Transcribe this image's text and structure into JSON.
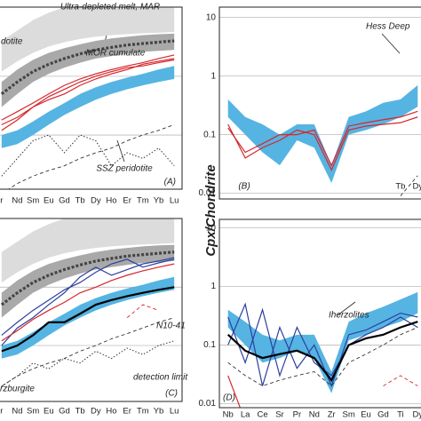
{
  "ylabel": "Cpx/Chondrite",
  "chart_data": [
    {
      "type": "line",
      "log": true,
      "ylim": [
        0.012,
        15
      ],
      "yticks": [
        0.1,
        1
      ],
      "grid": true,
      "categories": [
        "r",
        "Nd",
        "Sm",
        "Eu",
        "Gd",
        "Tb",
        "Dy",
        "Ho",
        "Er",
        "Tm",
        "Yb",
        "Lu"
      ],
      "annotations": [
        "dotite",
        "Ultra-depleted melt, MAR",
        "MOR cumulate",
        "SSZ peridotite",
        "(A)"
      ],
      "series": [
        {
          "style": "band",
          "color": "#dcdcdc",
          "low": [
            1.2,
            1.8,
            2.5,
            3.2,
            3.8,
            4.3,
            4.7,
            5,
            5.2,
            5.4,
            5.5,
            5.7
          ],
          "high": [
            4,
            6,
            9,
            12,
            15,
            15,
            15,
            15,
            15,
            15,
            15,
            15
          ]
        },
        {
          "style": "band",
          "color": "#a9a9a9",
          "low": [
            0.3,
            0.5,
            0.8,
            1.1,
            1.4,
            1.7,
            2,
            2.2,
            2.4,
            2.6,
            2.7,
            2.8
          ],
          "high": [
            0.8,
            1.3,
            1.9,
            2.5,
            3,
            3.5,
            4,
            4.4,
            4.7,
            5,
            5.2,
            5.3
          ]
        },
        {
          "style": "band",
          "color": "#56b4e2",
          "low": [
            0.06,
            0.07,
            0.1,
            0.15,
            0.22,
            0.3,
            0.4,
            0.5,
            0.6,
            0.7,
            0.8,
            0.9
          ],
          "high": [
            0.1,
            0.12,
            0.17,
            0.25,
            0.35,
            0.5,
            0.65,
            0.8,
            0.95,
            1.1,
            1.3,
            1.5
          ]
        },
        {
          "style": "thickdash",
          "color": "#444444",
          "values": [
            0.5,
            0.8,
            1.2,
            1.6,
            2,
            2.4,
            2.8,
            3.1,
            3.4,
            3.6,
            3.8,
            4
          ]
        },
        {
          "style": "solid",
          "color": "#d7262b",
          "values": [
            0.15,
            0.2,
            0.3,
            0.4,
            0.5,
            0.7,
            0.9,
            1.1,
            1.3,
            1.6,
            1.8,
            2
          ]
        },
        {
          "style": "solid",
          "color": "#d7262b",
          "values": [
            0.12,
            0.18,
            0.3,
            0.45,
            0.6,
            0.8,
            1,
            1.2,
            1.4,
            1.5,
            1.7,
            1.9
          ]
        },
        {
          "style": "solid",
          "color": "#d7262b",
          "values": [
            0.18,
            0.25,
            0.35,
            0.5,
            0.7,
            0.9,
            1.1,
            1.3,
            1.5,
            1.7,
            2,
            2.3
          ]
        },
        {
          "style": "dashed",
          "color": "#333333",
          "values": [
            0.01,
            0.015,
            0.02,
            0.025,
            0.03,
            0.04,
            0.05,
            0.06,
            0.08,
            0.1,
            0.12,
            0.15
          ]
        },
        {
          "style": "dotted",
          "color": "#333333",
          "values": [
            0.02,
            0.04,
            0.08,
            0.1,
            0.05,
            0.1,
            0.08,
            0.03,
            0.05,
            0.04,
            0.06,
            0.03
          ]
        }
      ]
    },
    {
      "type": "line",
      "log": true,
      "ylim": [
        0.008,
        15
      ],
      "yticks": [
        0.01,
        0.1,
        1,
        10
      ],
      "grid": true,
      "categories": [
        null,
        null,
        null,
        null,
        null,
        null,
        null,
        null,
        null,
        null,
        "Tb",
        "Dy"
      ],
      "annotations": [
        "Hess Deep",
        "(B)"
      ],
      "series": [
        {
          "style": "band",
          "color": "#56b4e2",
          "low": [
            0.2,
            0.1,
            0.05,
            0.03,
            0.08,
            0.06,
            0.015,
            0.1,
            0.12,
            0.15,
            0.2,
            0.3
          ],
          "high": [
            0.4,
            0.2,
            0.15,
            0.1,
            0.15,
            0.15,
            0.03,
            0.2,
            0.25,
            0.35,
            0.4,
            0.7
          ]
        },
        {
          "style": "solid",
          "color": "#d7262b",
          "values": [
            0.15,
            0.04,
            0.06,
            0.08,
            0.12,
            0.1,
            0.025,
            0.12,
            0.14,
            0.15,
            0.16,
            0.2
          ]
        },
        {
          "style": "solid",
          "color": "#d7262b",
          "values": [
            0.13,
            0.05,
            0.07,
            0.1,
            0.1,
            0.12,
            0.03,
            0.14,
            0.16,
            0.18,
            0.2,
            0.25
          ]
        },
        {
          "style": "dashed",
          "color": "#333333",
          "values": [
            null,
            null,
            null,
            null,
            null,
            null,
            null,
            null,
            null,
            null,
            0.009,
            0.02
          ]
        }
      ]
    },
    {
      "type": "line",
      "log": true,
      "ylim": [
        0.011,
        15
      ],
      "yticks": [
        0.1,
        1
      ],
      "grid": true,
      "categories": [
        "r",
        "Nd",
        "Sm",
        "Eu",
        "Gd",
        "Tb",
        "Dy",
        "Ho",
        "Er",
        "Tm",
        "Yb",
        "Lu"
      ],
      "annotations": [
        "N10-41",
        "detection limit",
        "rzburgite",
        "(C)"
      ],
      "series": [
        {
          "style": "band",
          "color": "#dcdcdc",
          "low": [
            1.2,
            1.8,
            2.5,
            3.2,
            3.8,
            4.3,
            4.7,
            5,
            5.2,
            5.4,
            5.5,
            5.7
          ],
          "high": [
            4,
            6,
            9,
            12,
            15,
            15,
            15,
            15,
            15,
            15,
            15,
            15
          ]
        },
        {
          "style": "band",
          "color": "#a9a9a9",
          "low": [
            0.3,
            0.5,
            0.8,
            1.1,
            1.4,
            1.7,
            2,
            2.2,
            2.4,
            2.6,
            2.7,
            2.8
          ],
          "high": [
            0.8,
            1.3,
            1.9,
            2.5,
            3,
            3.5,
            4,
            4.4,
            4.7,
            5,
            5.2,
            5.3
          ]
        },
        {
          "style": "band",
          "color": "#56b4e2",
          "low": [
            0.06,
            0.07,
            0.1,
            0.15,
            0.22,
            0.3,
            0.4,
            0.5,
            0.6,
            0.7,
            0.8,
            0.9
          ],
          "high": [
            0.1,
            0.12,
            0.17,
            0.25,
            0.35,
            0.5,
            0.65,
            0.8,
            0.95,
            1.1,
            1.3,
            1.5
          ]
        },
        {
          "style": "thickdash",
          "color": "#444444",
          "values": [
            0.5,
            0.8,
            1.2,
            1.6,
            2,
            2.4,
            2.8,
            3.1,
            3.4,
            3.6,
            3.8,
            4
          ]
        },
        {
          "style": "solid",
          "color": "#2b3f9e",
          "values": [
            0.15,
            0.25,
            0.4,
            0.6,
            0.9,
            1.2,
            1.8,
            2.5,
            3,
            2.2,
            2.6,
            3
          ]
        },
        {
          "style": "solid",
          "color": "#2b3f9e",
          "values": [
            0.1,
            0.2,
            0.3,
            0.5,
            0.8,
            1.5,
            2.2,
            1.6,
            2,
            2.5,
            2.8,
            3.2
          ]
        },
        {
          "style": "solid",
          "color": "#d7262b",
          "values": [
            0.12,
            0.18,
            0.28,
            0.4,
            0.55,
            0.8,
            1,
            1.3,
            1.6,
            1.9,
            2.2,
            2.5
          ]
        },
        {
          "style": "thick",
          "color": "#000000",
          "values": [
            0.08,
            0.1,
            0.15,
            0.25,
            0.25,
            0.35,
            0.5,
            0.6,
            0.7,
            0.8,
            0.9,
            1
          ]
        },
        {
          "style": "dashed",
          "color": "#333333",
          "values": [
            0.02,
            0.03,
            0.04,
            0.05,
            0.06,
            0.08,
            0.1,
            0.13,
            0.16,
            0.2,
            0.25,
            0.3
          ]
        },
        {
          "style": "dashed",
          "color": "#d7262b",
          "values": [
            null,
            null,
            null,
            null,
            null,
            null,
            null,
            null,
            0.3,
            0.5,
            0.4,
            null
          ]
        },
        {
          "style": "dotted",
          "color": "#333333",
          "values": [
            0.02,
            0.03,
            0.05,
            0.04,
            0.06,
            0.05,
            0.08,
            0.06,
            0.09,
            0.07,
            0.1,
            0.12
          ]
        }
      ]
    },
    {
      "type": "line",
      "log": true,
      "ylim": [
        0.0085,
        14
      ],
      "yticks": [
        0.01,
        0.1,
        1,
        10
      ],
      "grid": true,
      "categories": [
        "Nb",
        "La",
        "Ce",
        "Sr",
        "Pr",
        "Nd",
        "Zr",
        "Sm",
        "Eu",
        "Gd",
        "Ti",
        "Dy"
      ],
      "annotations": [
        "Iherzolites",
        "(D)"
      ],
      "series": [
        {
          "style": "band",
          "color": "#56b4e2",
          "low": [
            0.2,
            0.1,
            0.05,
            0.06,
            0.08,
            0.06,
            0.015,
            0.12,
            0.15,
            0.2,
            0.25,
            0.35
          ],
          "high": [
            0.4,
            0.25,
            0.15,
            0.12,
            0.15,
            0.15,
            0.035,
            0.25,
            0.35,
            0.45,
            0.6,
            0.8
          ]
        },
        {
          "style": "solid",
          "color": "#2b3f9e",
          "values": [
            0.3,
            0.05,
            0.4,
            0.03,
            0.2,
            0.05,
            0.03,
            0.1,
            0.15,
            0.2,
            0.3,
            0.2
          ]
        },
        {
          "style": "solid",
          "color": "#2b3f9e",
          "values": [
            0.1,
            0.5,
            0.02,
            0.2,
            0.04,
            0.1,
            0.02,
            0.15,
            0.18,
            0.25,
            0.35,
            0.3
          ]
        },
        {
          "style": "solid",
          "color": "#d7262b",
          "values": [
            0.03,
            0.005,
            null,
            null,
            null,
            null,
            null,
            null,
            null,
            null,
            null,
            null
          ]
        },
        {
          "style": "thick",
          "color": "#000000",
          "values": [
            0.15,
            0.08,
            0.06,
            0.07,
            0.08,
            0.06,
            0.025,
            0.1,
            0.13,
            0.15,
            0.2,
            0.25
          ]
        },
        {
          "style": "dashed",
          "color": "#333333",
          "values": [
            0.05,
            0.03,
            0.02,
            0.025,
            0.03,
            0.035,
            0.02,
            0.05,
            0.07,
            0.1,
            0.15,
            0.2
          ]
        },
        {
          "style": "dashed",
          "color": "#d7262b",
          "values": [
            null,
            null,
            null,
            null,
            null,
            null,
            null,
            null,
            null,
            0.02,
            0.03,
            0.02
          ]
        }
      ]
    }
  ]
}
